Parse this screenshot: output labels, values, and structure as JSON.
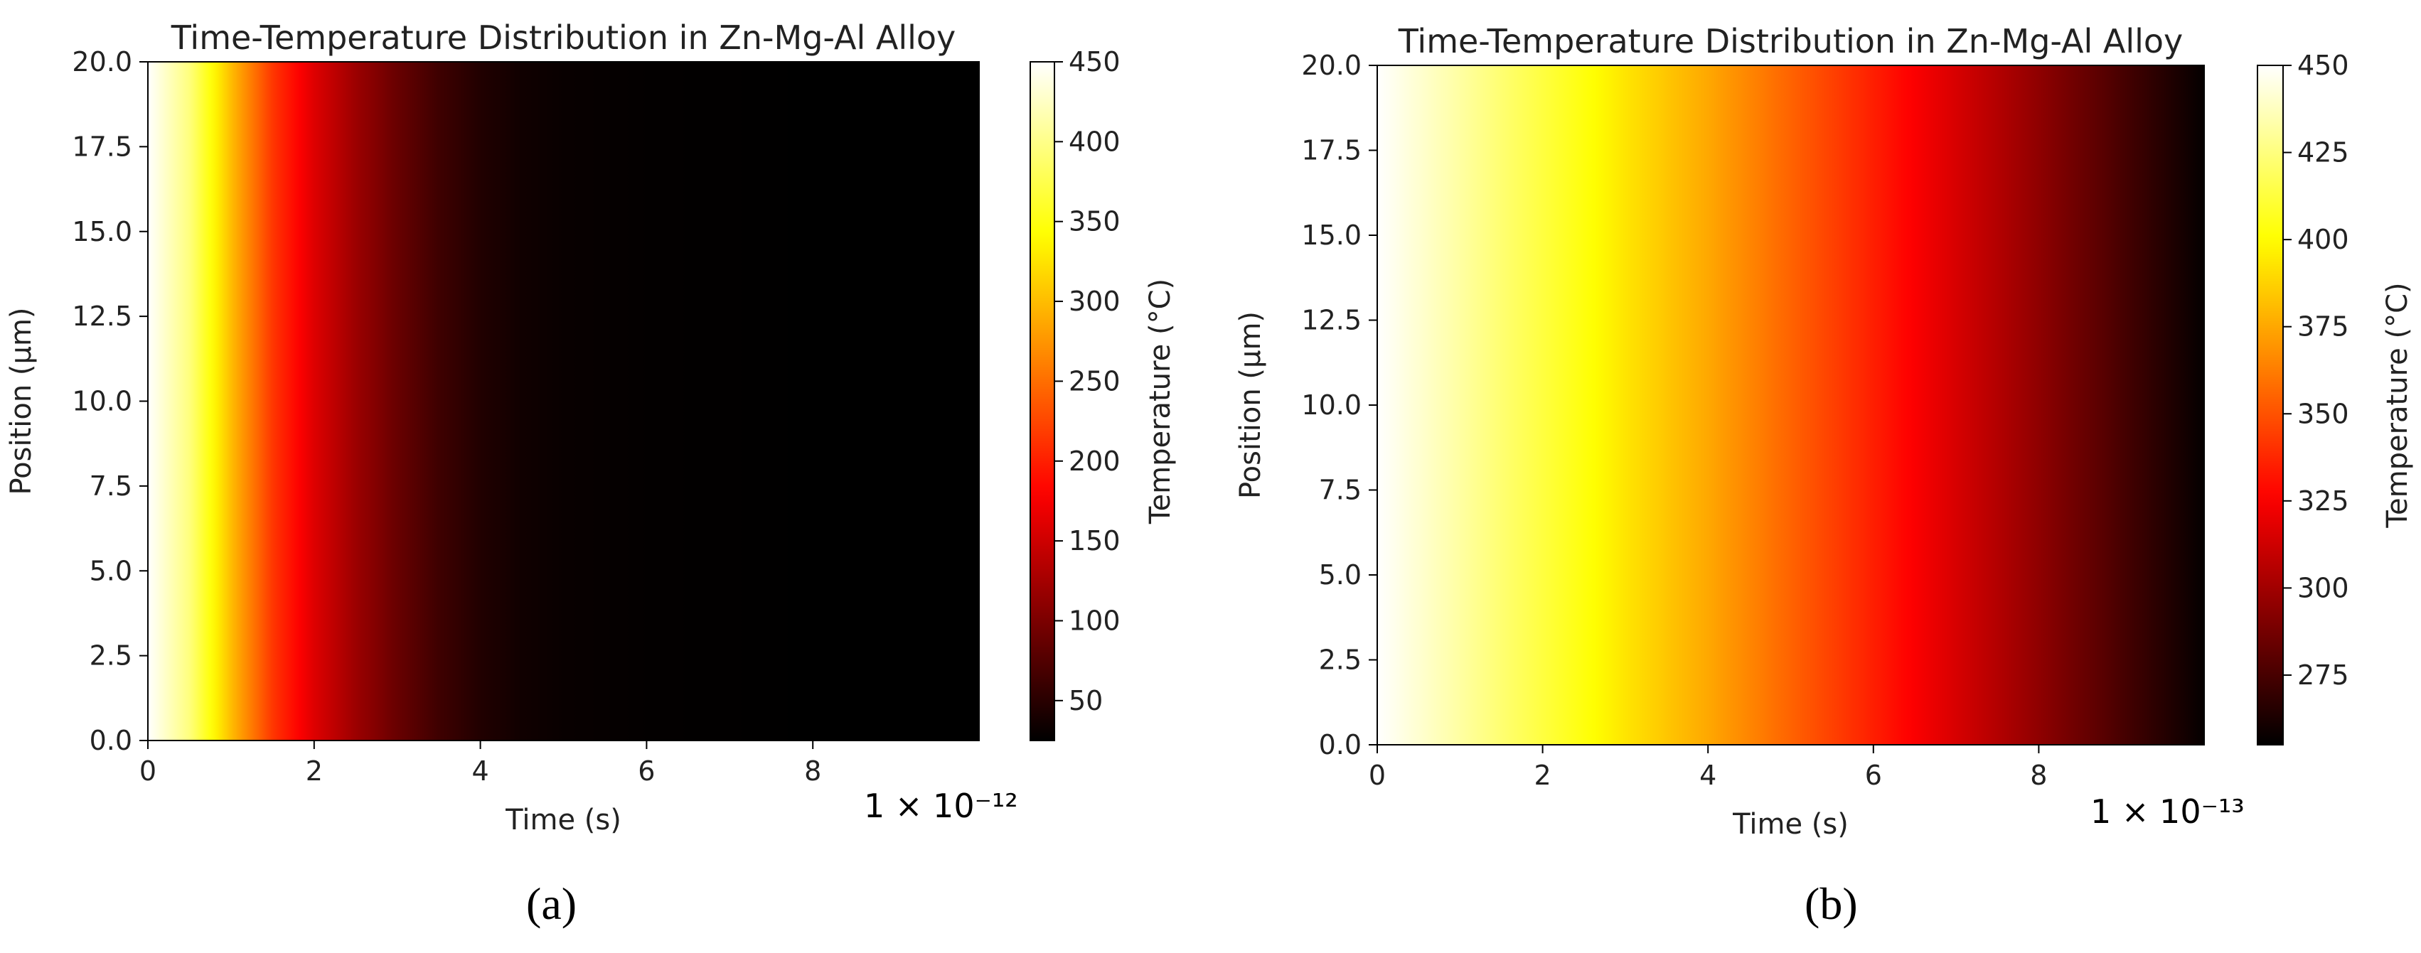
{
  "chart_data": [
    {
      "type": "heatmap",
      "panel": "(a)",
      "panel_letter": "a",
      "title": "Time-Temperature Distribution in Zn-Mg-Al Alloy",
      "xlabel": "Time (s)",
      "ylabel": "Position (µm)",
      "x_multiplier": "1 × 10⁻¹²",
      "xlim": [
        0,
        10
      ],
      "ylim": [
        0,
        20
      ],
      "xticks": [
        "0",
        "2",
        "4",
        "6",
        "8"
      ],
      "yticks": [
        "0.0",
        "2.5",
        "5.0",
        "7.5",
        "10.0",
        "12.5",
        "15.0",
        "17.5",
        "20.0"
      ],
      "colorbar": {
        "label": "Temperature (°C)",
        "colormap": "hot",
        "range": [
          25,
          450
        ],
        "ticks": [
          "50",
          "100",
          "150",
          "200",
          "250",
          "300",
          "350",
          "400",
          "450"
        ]
      },
      "uniform_in_position": true,
      "temperature_vs_time": [
        [
          0.0,
          450
        ],
        [
          0.5,
          395
        ],
        [
          1.0,
          300
        ],
        [
          1.5,
          215
        ],
        [
          2.0,
          160
        ],
        [
          2.5,
          120
        ],
        [
          3.0,
          88
        ],
        [
          3.5,
          63
        ],
        [
          4.0,
          45
        ],
        [
          4.5,
          35
        ],
        [
          5.0,
          30
        ],
        [
          6.0,
          27
        ],
        [
          7.0,
          26
        ],
        [
          8.0,
          25
        ],
        [
          9.0,
          25
        ],
        [
          10.0,
          25
        ]
      ]
    },
    {
      "type": "heatmap",
      "panel": "(b)",
      "panel_letter": "b",
      "title": "Time-Temperature Distribution in Zn-Mg-Al Alloy",
      "xlabel": "Time (s)",
      "ylabel": "Position (µm)",
      "x_multiplier": "1 × 10⁻¹³",
      "xlim": [
        0,
        10
      ],
      "ylim": [
        0,
        20
      ],
      "xticks": [
        "0",
        "2",
        "4",
        "6",
        "8"
      ],
      "yticks": [
        "0.0",
        "2.5",
        "5.0",
        "7.5",
        "10.0",
        "12.5",
        "15.0",
        "17.5",
        "20.0"
      ],
      "colorbar": {
        "label": "Temperature (°C)",
        "colormap": "hot",
        "range": [
          255,
          450
        ],
        "ticks": [
          "275",
          "300",
          "325",
          "350",
          "375",
          "400",
          "425",
          "450"
        ]
      },
      "uniform_in_position": true,
      "temperature_vs_time": [
        [
          0.0,
          450
        ],
        [
          1.0,
          432
        ],
        [
          2.0,
          413
        ],
        [
          3.0,
          393
        ],
        [
          4.0,
          375
        ],
        [
          5.0,
          355
        ],
        [
          6.0,
          335
        ],
        [
          7.0,
          315
        ],
        [
          8.0,
          295
        ],
        [
          9.0,
          275
        ],
        [
          10.0,
          256
        ]
      ]
    }
  ]
}
